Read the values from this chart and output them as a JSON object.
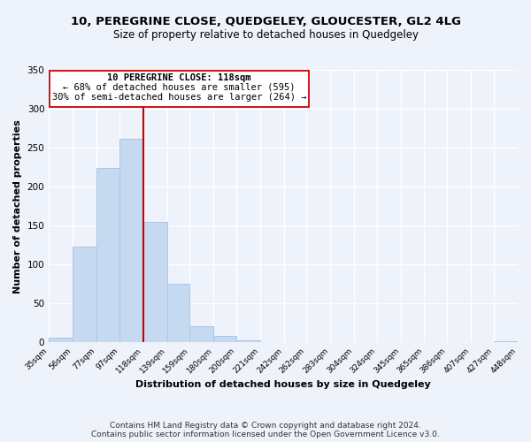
{
  "title": "10, PEREGRINE CLOSE, QUEDGELEY, GLOUCESTER, GL2 4LG",
  "subtitle": "Size of property relative to detached houses in Quedgeley",
  "xlabel": "Distribution of detached houses by size in Quedgeley",
  "ylabel": "Number of detached properties",
  "footer_line1": "Contains HM Land Registry data © Crown copyright and database right 2024.",
  "footer_line2": "Contains public sector information licensed under the Open Government Licence v3.0.",
  "bar_edges": [
    35,
    56,
    77,
    97,
    118,
    139,
    159,
    180,
    200,
    221,
    242,
    262,
    283,
    304,
    324,
    345,
    365,
    386,
    407,
    427,
    448
  ],
  "bar_heights": [
    6,
    123,
    224,
    262,
    155,
    76,
    21,
    9,
    3,
    1,
    0,
    0,
    1,
    0,
    0,
    0,
    0,
    0,
    0,
    2
  ],
  "bar_color": "#c5d9f1",
  "bar_edge_color": "#adc5e7",
  "vline_x": 118,
  "vline_color": "#cc0000",
  "annotation_title": "10 PEREGRINE CLOSE: 118sqm",
  "annotation_line1": "← 68% of detached houses are smaller (595)",
  "annotation_line2": "30% of semi-detached houses are larger (264) →",
  "annotation_box_color": "#ffffff",
  "annotation_box_edge": "#cc0000",
  "ylim": [
    0,
    350
  ],
  "tick_labels": [
    "35sqm",
    "56sqm",
    "77sqm",
    "97sqm",
    "118sqm",
    "139sqm",
    "159sqm",
    "180sqm",
    "200sqm",
    "221sqm",
    "242sqm",
    "262sqm",
    "283sqm",
    "304sqm",
    "324sqm",
    "345sqm",
    "365sqm",
    "386sqm",
    "407sqm",
    "427sqm",
    "448sqm"
  ],
  "background_color": "#eef2fa",
  "yticks": [
    0,
    50,
    100,
    150,
    200,
    250,
    300,
    350
  ]
}
